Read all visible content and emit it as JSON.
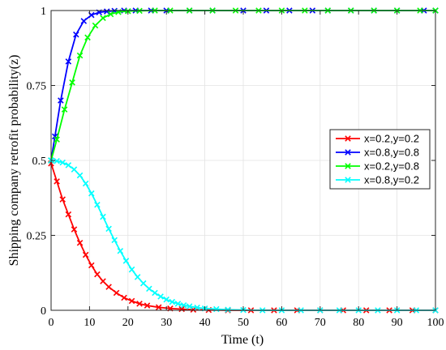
{
  "chart_data": {
    "type": "line",
    "title": "",
    "xlabel": "Time (t)",
    "ylabel": "Shipping company retrofit probability(z)",
    "xlim": [
      0,
      100
    ],
    "ylim": [
      0,
      1
    ],
    "xticks": [
      0,
      10,
      20,
      30,
      40,
      50,
      60,
      70,
      80,
      90,
      100
    ],
    "yticks": [
      0,
      0.25,
      0.5,
      0.75,
      1
    ],
    "xtick_labels": [
      "0",
      "10",
      "20",
      "30",
      "40",
      "50",
      "60",
      "70",
      "80",
      "90",
      "100"
    ],
    "ytick_labels": [
      "0",
      "0.25",
      "0.5",
      "0.75",
      "1"
    ],
    "grid": true,
    "legend_position": "right",
    "marker": "x",
    "series": [
      {
        "name": "x=0.2,y=0.2",
        "color": "#ff0000",
        "x": [
          0,
          1.5,
          3,
          4.5,
          6,
          7.5,
          9,
          10.5,
          12,
          13.5,
          15,
          17,
          19,
          21,
          23,
          25,
          28,
          31,
          34,
          37,
          41,
          46,
          52,
          58,
          64,
          70,
          76,
          82,
          88,
          94,
          100
        ],
        "y": [
          0.49,
          0.43,
          0.37,
          0.32,
          0.27,
          0.225,
          0.185,
          0.15,
          0.12,
          0.097,
          0.078,
          0.058,
          0.042,
          0.031,
          0.022,
          0.016,
          0.01,
          0.006,
          0.004,
          0.002,
          0.001,
          0,
          0,
          0,
          0,
          0,
          0,
          0,
          0,
          0,
          0
        ]
      },
      {
        "name": "x=0.8,y=0.8",
        "color": "#0000ff",
        "x": [
          0,
          1,
          2.5,
          4.5,
          6.5,
          8.5,
          10.5,
          12.5,
          14.5,
          16.5,
          19,
          22,
          26,
          30,
          36,
          42,
          50,
          56,
          62,
          68,
          72,
          78,
          84,
          90,
          97,
          100
        ],
        "y": [
          0.5,
          0.58,
          0.7,
          0.83,
          0.92,
          0.965,
          0.985,
          0.994,
          0.997,
          0.999,
          1,
          1,
          1,
          1,
          1,
          1,
          1,
          1,
          1,
          1,
          1,
          1,
          1,
          1,
          1,
          1
        ]
      },
      {
        "name": "x=0.2,y=0.8",
        "color": "#00ff00",
        "x": [
          0,
          1.5,
          3.5,
          5.5,
          7.5,
          9.5,
          11.5,
          13.5,
          15.5,
          17.5,
          20,
          23,
          27,
          31,
          36,
          42,
          48,
          54,
          60,
          66,
          72,
          78,
          84,
          90,
          96,
          100
        ],
        "y": [
          0.5,
          0.57,
          0.67,
          0.76,
          0.85,
          0.91,
          0.95,
          0.975,
          0.988,
          0.995,
          0.998,
          0.999,
          1,
          1,
          1,
          1,
          1,
          1,
          1,
          1,
          1,
          1,
          1,
          1,
          1,
          1
        ]
      },
      {
        "name": "x=0.8,y=0.2",
        "color": "#00ffff",
        "x": [
          0,
          1.5,
          3,
          4.5,
          6,
          7.5,
          9,
          10.5,
          12,
          13.5,
          15,
          16.5,
          18,
          19.5,
          21,
          22.5,
          24,
          25.5,
          27,
          28.5,
          30,
          31.5,
          33,
          34.5,
          36,
          38,
          40,
          43,
          46,
          50,
          55,
          60,
          65,
          70,
          75,
          80,
          85,
          90,
          95,
          100
        ],
        "y": [
          0.5,
          0.498,
          0.493,
          0.484,
          0.47,
          0.45,
          0.423,
          0.39,
          0.352,
          0.312,
          0.272,
          0.234,
          0.198,
          0.165,
          0.136,
          0.111,
          0.09,
          0.072,
          0.058,
          0.046,
          0.036,
          0.028,
          0.022,
          0.017,
          0.013,
          0.009,
          0.006,
          0.004,
          0.002,
          0.001,
          0,
          0,
          0,
          0,
          0,
          0,
          0,
          0,
          0,
          0
        ]
      }
    ]
  }
}
